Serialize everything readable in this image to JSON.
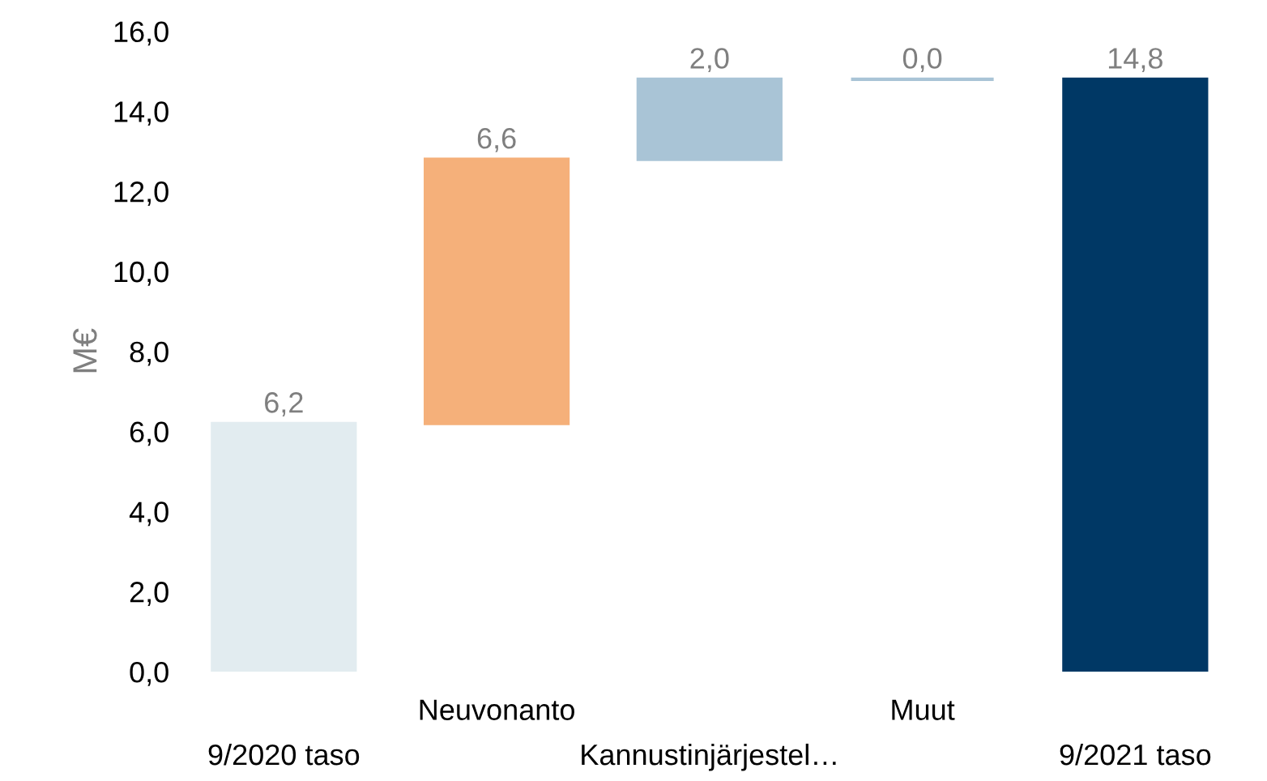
{
  "chart_data": {
    "type": "bar",
    "ylabel": "M€",
    "categories": [
      "9/2020 taso",
      "Neuvonanto",
      "Kannustinjärjestel…",
      "Muut",
      "9/2021 taso"
    ],
    "values": [
      6.2,
      6.6,
      2.0,
      0.0,
      14.8
    ],
    "base": [
      0,
      6.2,
      12.8,
      14.8,
      0
    ],
    "colors": [
      "#e2ecf0",
      "#f5b07a",
      "#a9c4d6",
      "#a9c4d6",
      "#003865"
    ],
    "value_labels": [
      "6,2",
      "6,6",
      "2,0",
      "0,0",
      "14,8"
    ],
    "ylim": [
      0,
      16
    ],
    "yticks": [
      {
        "value": 0,
        "label": "0,0"
      },
      {
        "value": 2,
        "label": "2,0"
      },
      {
        "value": 4,
        "label": "4,0"
      },
      {
        "value": 6,
        "label": "6,0"
      },
      {
        "value": 8,
        "label": "8,0"
      },
      {
        "value": 10,
        "label": "10,0"
      },
      {
        "value": 12,
        "label": "12,0"
      },
      {
        "value": 14,
        "label": "14,0"
      },
      {
        "value": 16,
        "label": "16,0"
      }
    ],
    "grid": false
  }
}
